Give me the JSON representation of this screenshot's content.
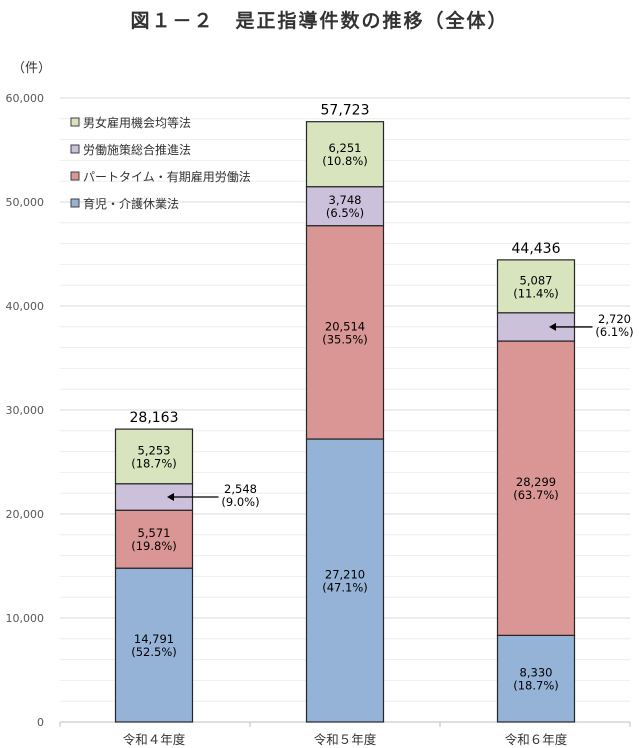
{
  "chart_data": {
    "type": "bar",
    "stacked": true,
    "title": "図１－２　是正指導件数の推移（全体）",
    "ylabel": "（件）",
    "xlabel": "",
    "ylim": [
      0,
      60000
    ],
    "yticks": [
      0,
      10000,
      20000,
      30000,
      40000,
      50000,
      60000
    ],
    "ytick_labels": [
      "0",
      "10,000",
      "20,000",
      "30,000",
      "40,000",
      "50,000",
      "60,000"
    ],
    "grid": true,
    "legend_position": "top-left",
    "categories": [
      "令和４年度",
      "令和５年度",
      "令和６年度"
    ],
    "totals": [
      28163,
      57723,
      44436
    ],
    "total_labels": [
      "28,163",
      "57,723",
      "44,436"
    ],
    "series": [
      {
        "name": "育児・介護休業法",
        "color": "#95b3d7",
        "values": [
          14791,
          27210,
          8330
        ],
        "labels": [
          "14,791",
          "27,210",
          "8,330"
        ],
        "pct": [
          "(52.5%)",
          "(47.1%)",
          "(18.7%)"
        ]
      },
      {
        "name": "パートタイム・有期雇用労働法",
        "color": "#d99694",
        "values": [
          5571,
          20514,
          28299
        ],
        "labels": [
          "5,571",
          "20,514",
          "28,299"
        ],
        "pct": [
          "(19.8%)",
          "(35.5%)",
          "(63.7%)"
        ]
      },
      {
        "name": "労働施策総合推進法",
        "color": "#ccc1da",
        "values": [
          2548,
          3748,
          2720
        ],
        "labels": [
          "2,548",
          "3,748",
          "2,720"
        ],
        "pct": [
          "(9.0%)",
          "(6.5%)",
          "(6.1%)"
        ]
      },
      {
        "name": "男女雇用機会均等法",
        "color": "#d7e4bd",
        "values": [
          5253,
          6251,
          5087
        ],
        "labels": [
          "5,253",
          "6,251",
          "5,087"
        ],
        "pct": [
          "(18.7%)",
          "(10.8%)",
          "(11.4%)"
        ]
      }
    ]
  }
}
